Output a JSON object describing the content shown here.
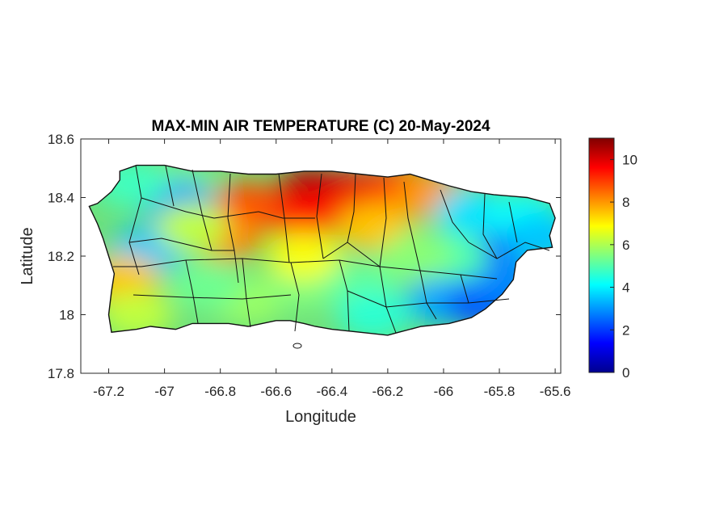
{
  "chart_data": {
    "type": "heatmap",
    "title": "MAX-MIN AIR TEMPERATURE (C) 20-May-2024",
    "xlabel": "Longitude",
    "ylabel": "Latitude",
    "xlim": [
      -67.3,
      -65.58
    ],
    "ylim": [
      17.8,
      18.6
    ],
    "xticks": [
      -67.2,
      -67,
      -66.8,
      -66.6,
      -66.4,
      -66.2,
      -66,
      -65.8,
      -65.6
    ],
    "xtick_labels": [
      "-67.2",
      "-67",
      "-66.8",
      "-66.6",
      "-66.4",
      "-66.2",
      "-66",
      "-65.8",
      "-65.6"
    ],
    "yticks": [
      17.8,
      18,
      18.2,
      18.4,
      18.6
    ],
    "ytick_labels": [
      "17.8",
      "18",
      "18.2",
      "18.4",
      "18.6"
    ],
    "colorbar": {
      "colormap": "jet",
      "range": [
        0,
        11
      ],
      "ticks": [
        0,
        2,
        4,
        6,
        8,
        10
      ],
      "tick_labels": [
        "0",
        "2",
        "4",
        "6",
        "8",
        "10"
      ],
      "colors": [
        "#00008f",
        "#0000ff",
        "#00ffff",
        "#ffff00",
        "#ff0000",
        "#800000"
      ]
    },
    "grid": false,
    "region_outline": [
      [
        -67.27,
        18.37
      ],
      [
        -67.24,
        18.38
      ],
      [
        -67.19,
        18.42
      ],
      [
        -67.16,
        18.46
      ],
      [
        -67.16,
        18.49
      ],
      [
        -67.1,
        18.51
      ],
      [
        -67.0,
        18.51
      ],
      [
        -66.9,
        18.49
      ],
      [
        -66.8,
        18.49
      ],
      [
        -66.7,
        18.48
      ],
      [
        -66.6,
        18.48
      ],
      [
        -66.5,
        18.49
      ],
      [
        -66.4,
        18.49
      ],
      [
        -66.3,
        18.48
      ],
      [
        -66.2,
        18.47
      ],
      [
        -66.12,
        18.48
      ],
      [
        -66.05,
        18.46
      ],
      [
        -65.98,
        18.44
      ],
      [
        -65.9,
        18.42
      ],
      [
        -65.82,
        18.41
      ],
      [
        -65.7,
        18.4
      ],
      [
        -65.62,
        18.38
      ],
      [
        -65.6,
        18.33
      ],
      [
        -65.62,
        18.27
      ],
      [
        -65.61,
        18.23
      ],
      [
        -65.7,
        18.22
      ],
      [
        -65.74,
        18.18
      ],
      [
        -65.75,
        18.12
      ],
      [
        -65.79,
        18.07
      ],
      [
        -65.85,
        18.02
      ],
      [
        -65.9,
        17.99
      ],
      [
        -65.98,
        17.97
      ],
      [
        -66.08,
        17.96
      ],
      [
        -66.16,
        17.94
      ],
      [
        -66.2,
        17.93
      ],
      [
        -66.3,
        17.94
      ],
      [
        -66.4,
        17.95
      ],
      [
        -66.46,
        17.96
      ],
      [
        -66.5,
        17.97
      ],
      [
        -66.55,
        17.98
      ],
      [
        -66.6,
        17.98
      ],
      [
        -66.65,
        17.97
      ],
      [
        -66.7,
        17.96
      ],
      [
        -66.77,
        17.97
      ],
      [
        -66.85,
        17.97
      ],
      [
        -66.9,
        17.97
      ],
      [
        -66.96,
        17.95
      ],
      [
        -67.05,
        17.96
      ],
      [
        -67.1,
        17.95
      ],
      [
        -67.19,
        17.94
      ],
      [
        -67.2,
        18.0
      ],
      [
        -67.19,
        18.08
      ],
      [
        -67.18,
        18.14
      ],
      [
        -67.2,
        18.2
      ],
      [
        -67.22,
        18.26
      ],
      [
        -67.24,
        18.31
      ],
      [
        -67.27,
        18.37
      ]
    ],
    "field_samples": [
      {
        "lon": -66.47,
        "lat": 18.42,
        "value": 10.5
      },
      {
        "lon": -66.3,
        "lat": 18.41,
        "value": 9.8
      },
      {
        "lon": -66.5,
        "lat": 18.34,
        "value": 9.5
      },
      {
        "lon": -66.15,
        "lat": 18.43,
        "value": 9.2
      },
      {
        "lon": -66.7,
        "lat": 18.37,
        "value": 8.8
      },
      {
        "lon": -66.78,
        "lat": 18.27,
        "value": 8.2
      },
      {
        "lon": -66.05,
        "lat": 18.41,
        "value": 8.0
      },
      {
        "lon": -66.25,
        "lat": 18.3,
        "value": 7.5
      },
      {
        "lon": -66.95,
        "lat": 18.44,
        "value": 5.5
      },
      {
        "lon": -66.95,
        "lat": 18.38,
        "value": 3.0
      },
      {
        "lon": -67.06,
        "lat": 18.22,
        "value": 3.5
      },
      {
        "lon": -66.9,
        "lat": 18.3,
        "value": 6.2
      },
      {
        "lon": -67.15,
        "lat": 18.12,
        "value": 7.5
      },
      {
        "lon": -67.1,
        "lat": 18.0,
        "value": 6.2
      },
      {
        "lon": -66.7,
        "lat": 18.05,
        "value": 5.8
      },
      {
        "lon": -66.5,
        "lat": 18.1,
        "value": 5.5
      },
      {
        "lon": -66.3,
        "lat": 18.1,
        "value": 5.2
      },
      {
        "lon": -66.5,
        "lat": 18.2,
        "value": 6.8
      },
      {
        "lon": -66.25,
        "lat": 18.0,
        "value": 4.6
      },
      {
        "lon": -66.0,
        "lat": 18.05,
        "value": 3.2
      },
      {
        "lon": -65.86,
        "lat": 18.04,
        "value": 2.2
      },
      {
        "lon": -65.8,
        "lat": 18.12,
        "value": 2.8
      },
      {
        "lon": -65.8,
        "lat": 18.28,
        "value": 1.5
      },
      {
        "lon": -65.9,
        "lat": 18.35,
        "value": 3.8
      },
      {
        "lon": -65.72,
        "lat": 18.34,
        "value": 4.2
      },
      {
        "lon": -65.97,
        "lat": 18.2,
        "value": 5.0
      },
      {
        "lon": -66.1,
        "lat": 18.2,
        "value": 5.6
      },
      {
        "lon": -65.65,
        "lat": 18.26,
        "value": 3.5
      },
      {
        "lon": -67.12,
        "lat": 18.45,
        "value": 4.8
      },
      {
        "lon": -66.85,
        "lat": 18.1,
        "value": 5.3
      }
    ],
    "coastline_color": "#000000"
  }
}
